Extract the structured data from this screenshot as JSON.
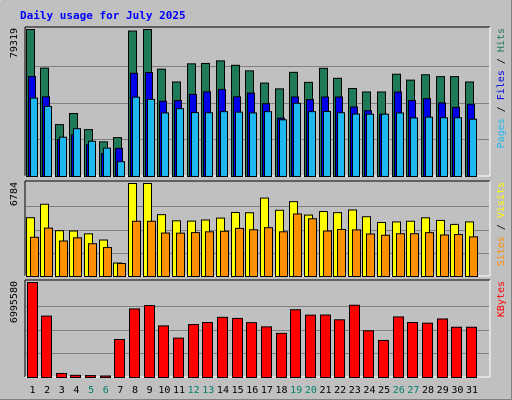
{
  "chart_data": {
    "type": "bar",
    "title": "Daily usage for July 2025",
    "days": [
      "1",
      "2",
      "3",
      "4",
      "5",
      "6",
      "7",
      "8",
      "9",
      "10",
      "11",
      "12",
      "13",
      "14",
      "15",
      "16",
      "17",
      "18",
      "19",
      "20",
      "21",
      "22",
      "23",
      "24",
      "25",
      "26",
      "27",
      "28",
      "29",
      "30",
      "31"
    ],
    "weekend_days": [
      "5",
      "6",
      "12",
      "13",
      "19",
      "20",
      "26",
      "27"
    ],
    "colors": {
      "background": "#c0c0c0",
      "title": "#0000ff",
      "hits": "#1f7a58",
      "files": "#0000e8",
      "pages": "#1eb8f0",
      "visits": "#ffff00",
      "sites": "#ff9000",
      "kbytes": "#ff0000",
      "weekend_label": "#00806a",
      "weekday_label": "#000000"
    },
    "panels": [
      {
        "id": "hits-files-pages",
        "ymax_label": "79319",
        "ymax": 79319,
        "legend": [
          {
            "text": "Pages",
            "color": "#1eb8f0"
          },
          {
            "text": " / ",
            "color": "#000000"
          },
          {
            "text": "Files",
            "color": "#0000e8"
          },
          {
            "text": " / ",
            "color": "#000000"
          },
          {
            "text": "Hits",
            "color": "#1f7a58"
          }
        ],
        "series": [
          {
            "name": "Hits",
            "color": "#1f7a58",
            "values": [
              79300,
              58500,
              28000,
              34000,
              25300,
              18700,
              21000,
              78500,
              79300,
              57900,
              51000,
              60800,
              61000,
              62400,
              60000,
              57000,
              50400,
              47300,
              56200,
              50800,
              58400,
              53000,
              47500,
              45600,
              45600,
              55200,
              52000,
              54900,
              53900,
              53900,
              51000
            ]
          },
          {
            "name": "Files",
            "color": "#0000e8",
            "values": [
              54000,
              43000,
              20000,
              22500,
              17200,
              12300,
              15200,
              55700,
              56100,
              40600,
              41000,
              44300,
              45700,
              47000,
              43000,
              45000,
              39300,
              31500,
              42900,
              41500,
              42900,
              42900,
              37500,
              35500,
              33600,
              45600,
              41000,
              42000,
              39700,
              37300,
              39000
            ]
          },
          {
            "name": "Pages",
            "color": "#1eb8f0",
            "values": [
              42300,
              37800,
              21200,
              25800,
              19000,
              15300,
              8000,
              42800,
              41600,
              34300,
              36600,
              34500,
              34400,
              35000,
              34700,
              34300,
              35000,
              30600,
              39500,
              35000,
              35100,
              34400,
              33700,
              33600,
              33600,
              34300,
              31600,
              32000,
              31700,
              31700,
              30900
            ]
          }
        ]
      },
      {
        "id": "visits-sites",
        "ymax_label": "6784",
        "ymax": 6784,
        "legend": [
          {
            "text": "Sites",
            "color": "#ff9000"
          },
          {
            "text": " / ",
            "color": "#000000"
          },
          {
            "text": "Visits",
            "color": "#ffff00"
          }
        ],
        "series": [
          {
            "name": "Visits",
            "color": "#ffff00",
            "values": [
              4290,
              5270,
              3340,
              3320,
              3110,
              2660,
              980,
              6784,
              6784,
              4510,
              4060,
              4040,
              4120,
              4260,
              4670,
              4650,
              5720,
              4830,
              5460,
              4480,
              4740,
              4660,
              4850,
              4360,
              3940,
              3980,
              4030,
              4280,
              4090,
              3800,
              3980
            ]
          },
          {
            "name": "Sites",
            "color": "#ff9000",
            "values": [
              2860,
              3530,
              2590,
              2820,
              2390,
              2110,
              950,
              4030,
              4030,
              3170,
              3160,
              3200,
              3260,
              3300,
              3510,
              3410,
              3560,
              3260,
              4560,
              4210,
              3320,
              3430,
              3400,
              3100,
              3010,
              3120,
              3120,
              3200,
              3030,
              3060,
              2890
            ]
          }
        ]
      },
      {
        "id": "kbytes",
        "ymax_label": "6995580",
        "ymax": 6995580,
        "legend": [
          {
            "text": "KBytes",
            "color": "#ff0000"
          }
        ],
        "series": [
          {
            "name": "KBytes",
            "color": "#ff0000",
            "values": [
              6995580,
              4520000,
              300000,
              160000,
              140000,
              110000,
              2800000,
              5050000,
              5300000,
              3800000,
              2900000,
              3900000,
              4050000,
              4430000,
              4350000,
              4040000,
              3730000,
              3250000,
              4990000,
              4590000,
              4600000,
              4250000,
              5320000,
              3440000,
              2730000,
              4460000,
              4050000,
              4000000,
              4310000,
              3700000,
              3700000
            ]
          }
        ]
      }
    ]
  }
}
